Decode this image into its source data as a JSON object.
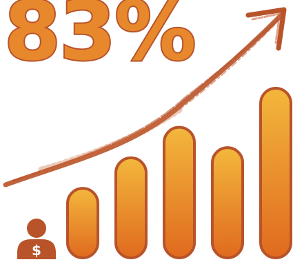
{
  "headline": {
    "text": "83%"
  },
  "growth": {
    "bar_levels": [
      0.41,
      0.59,
      0.77,
      0.65,
      1.0
    ],
    "trend": "up"
  },
  "person": {
    "symbol": "$",
    "icon": "person-dollar-icon"
  },
  "icons": {
    "arrow": "rising-arrow-icon"
  },
  "colors": {
    "bar_top": "#f3b73c",
    "bar_bottom": "#e06a1f",
    "outline": "#b8532a",
    "headline_fill": "#e8882c",
    "arrow": "#b8532a"
  }
}
